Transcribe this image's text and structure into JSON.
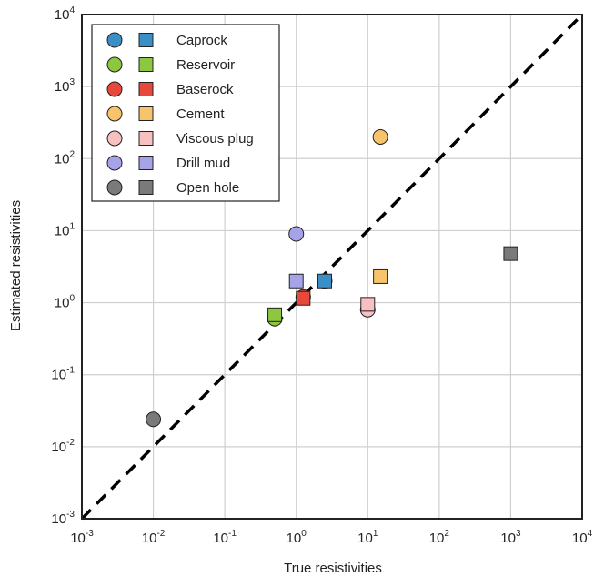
{
  "chart_data": {
    "type": "scatter",
    "title": "",
    "xlabel": "True resistivities",
    "ylabel": "Estimated resistivities",
    "xscale": "log",
    "yscale": "log",
    "xlim": [
      0.001,
      10000
    ],
    "ylim": [
      0.001,
      10000
    ],
    "grid": true,
    "legend_position": "top-left",
    "tick_exponents": [
      -3,
      -2,
      -1,
      0,
      1,
      2,
      3,
      4
    ],
    "reference_line": {
      "style": "dashed",
      "color": "#000000",
      "from": [
        0.001,
        0.001
      ],
      "to": [
        10000,
        10000
      ]
    },
    "marker_types": [
      "circle",
      "square"
    ],
    "series": [
      {
        "name": "Caprock",
        "color": "#3a8fc7",
        "circle": [
          [
            2.5,
            2.0
          ]
        ],
        "square": [
          [
            2.5,
            2.0
          ]
        ]
      },
      {
        "name": "Reservoir",
        "color": "#8dc63f",
        "circle": [
          [
            0.5,
            0.6
          ]
        ],
        "square": [
          [
            0.5,
            0.68
          ]
        ]
      },
      {
        "name": "Baserock",
        "color": "#e8483b",
        "circle": [
          [
            1.25,
            1.2
          ]
        ],
        "square": [
          [
            1.25,
            1.15
          ]
        ]
      },
      {
        "name": "Cement",
        "color": "#f7c46c",
        "circle": [
          [
            15,
            200
          ]
        ],
        "square": [
          [
            15,
            2.3
          ]
        ]
      },
      {
        "name": "Viscous plug",
        "color": "#f8c0c0",
        "circle": [
          [
            10,
            0.8
          ]
        ],
        "square": [
          [
            10,
            0.95
          ]
        ]
      },
      {
        "name": "Drill mud",
        "color": "#a7a3e8",
        "circle": [
          [
            1.0,
            9.0
          ]
        ],
        "square": [
          [
            1.0,
            2.0
          ]
        ]
      },
      {
        "name": "Open hole",
        "color": "#7a7a7a",
        "circle": [
          [
            0.01,
            0.024
          ]
        ],
        "square": [
          [
            1000,
            4.8
          ]
        ]
      }
    ]
  }
}
